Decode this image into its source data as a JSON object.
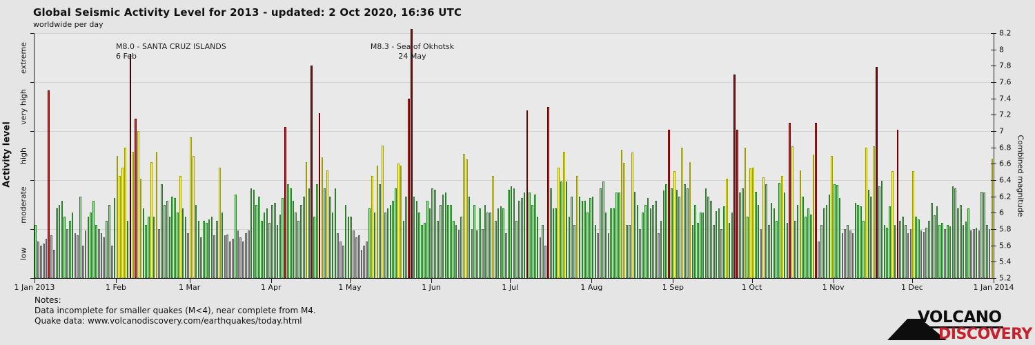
{
  "header": {
    "title": "Global Seismic Activity Level for 2013 - updated:  2 Oct 2020, 16:36 UTC",
    "subtitle": "worldwide per day"
  },
  "y_left": {
    "label": "Activity level"
  },
  "y_right": {
    "label": "Combined magnitude"
  },
  "annotations": [
    {
      "line1": "M8.0 - SANTA CRUZ ISLANDS",
      "line2": "6 Feb"
    },
    {
      "line1": "M8.3 - Sea of Okhotsk",
      "line2": "24 May"
    }
  ],
  "notes": {
    "line1": "Notes:",
    "line2": "Data incomplete for smaller quakes (M<4), near complete from M4.",
    "line3": "Quake data: www.volcanodiscovery.com/earthquakes/today.html"
  },
  "logo": {
    "line1": "VOLCANO",
    "line2": "DISCOVERY"
  },
  "chart_data": {
    "type": "bar",
    "title": "Global Seismic Activity Level for 2013",
    "subtitle": "worldwide per day, one bar per day",
    "start_date": "2013-01-01",
    "end_date": "2013-12-31",
    "ylim": [
      5.2,
      8.2
    ],
    "ylabel_left": "Activity level",
    "ylabel_right": "Combined magnitude",
    "grid": true,
    "gridlines_at": [
      5.8,
      6.4,
      7.0,
      7.6,
      8.2
    ],
    "bands": [
      {
        "label": "low",
        "min": 5.2,
        "max": 5.8,
        "fill": "#ababab",
        "edge": "#636363"
      },
      {
        "label": "moderate",
        "min": 5.8,
        "max": 6.4,
        "fill": "#96d796",
        "edge": "#2e7d2e"
      },
      {
        "label": "high",
        "min": 6.4,
        "max": 7.0,
        "fill": "#f6f632",
        "edge": "#9e9e00"
      },
      {
        "label": "very high",
        "min": 7.0,
        "max": 7.6,
        "fill": "#e01f1f",
        "edge": "#6e0000"
      },
      {
        "label": "extreme",
        "min": 7.6,
        "max": 8.3,
        "fill": "#7c1010",
        "edge": "#350404"
      }
    ],
    "right_ticks": [
      "5.2",
      "5.4",
      "5.6",
      "5.8",
      "6",
      "6.2",
      "6.4",
      "6.6",
      "6.8",
      "7",
      "7.2",
      "7.4",
      "7.6",
      "7.8",
      "8",
      "8.2"
    ],
    "x_tick_labels": [
      "1 Jan 2013",
      "1 Feb",
      "1 Mar",
      "1 Apr",
      "1 May",
      "1 Jun",
      "1 Jul",
      "1 Aug",
      "1 Sep",
      "1 Oct",
      "1 Nov",
      "1 Dec",
      "1 Jan 2014"
    ],
    "x_tick_day_offsets": [
      0,
      31,
      59,
      90,
      120,
      151,
      181,
      212,
      243,
      273,
      304,
      334,
      365
    ],
    "notable_events": [
      {
        "date": "2013-02-06",
        "label": "M8.0 - SANTA CRUZ ISLANDS"
      },
      {
        "date": "2013-05-24",
        "label": "M8.3 - Sea of Okhotsk"
      }
    ],
    "values": [
      5.85,
      5.65,
      5.6,
      5.62,
      5.68,
      7.5,
      5.72,
      5.55,
      6.05,
      6.1,
      6.15,
      5.95,
      5.8,
      5.9,
      6.0,
      5.75,
      5.72,
      6.2,
      5.6,
      5.78,
      5.95,
      6.0,
      6.15,
      5.85,
      5.8,
      5.75,
      5.7,
      5.9,
      6.1,
      5.6,
      6.18,
      6.7,
      6.45,
      6.55,
      6.8,
      5.9,
      7.95,
      6.75,
      7.15,
      7.0,
      6.42,
      6.05,
      5.85,
      5.95,
      6.62,
      5.95,
      6.75,
      5.8,
      6.35,
      6.1,
      6.15,
      5.95,
      6.2,
      6.18,
      6.0,
      6.45,
      6.05,
      5.95,
      5.75,
      6.92,
      6.7,
      6.1,
      5.9,
      5.7,
      5.9,
      5.88,
      5.92,
      5.95,
      5.72,
      5.9,
      6.55,
      6.0,
      5.72,
      5.73,
      5.65,
      5.68,
      6.22,
      5.78,
      5.7,
      5.65,
      5.75,
      5.78,
      6.3,
      6.28,
      6.1,
      6.2,
      5.9,
      6.0,
      6.05,
      5.88,
      6.1,
      6.12,
      5.85,
      5.98,
      6.18,
      7.05,
      6.35,
      6.3,
      6.15,
      6.0,
      5.9,
      6.1,
      6.2,
      6.62,
      6.3,
      7.8,
      5.95,
      6.35,
      7.22,
      6.68,
      6.3,
      6.52,
      6.2,
      6.0,
      6.3,
      5.75,
      5.65,
      5.6,
      6.1,
      5.95,
      5.95,
      5.78,
      5.7,
      5.72,
      5.55,
      5.6,
      5.65,
      6.05,
      6.45,
      6.0,
      6.58,
      6.35,
      6.82,
      6.0,
      6.05,
      6.1,
      6.15,
      6.3,
      6.6,
      6.58,
      5.9,
      6.2,
      7.4,
      8.25,
      6.2,
      6.15,
      6.0,
      5.85,
      5.88,
      6.15,
      6.05,
      6.3,
      6.28,
      5.9,
      6.1,
      6.22,
      6.25,
      6.1,
      6.1,
      5.9,
      5.85,
      5.79,
      5.95,
      6.72,
      6.65,
      6.2,
      5.8,
      6.1,
      5.78,
      6.05,
      5.8,
      6.1,
      6.0,
      6.0,
      6.45,
      5.9,
      6.05,
      6.08,
      6.05,
      5.75,
      6.28,
      6.32,
      6.3,
      5.9,
      6.15,
      6.18,
      6.25,
      7.25,
      6.25,
      6.1,
      6.22,
      5.95,
      5.7,
      5.85,
      5.6,
      7.3,
      6.3,
      6.05,
      6.05,
      6.55,
      6.38,
      6.75,
      6.38,
      5.95,
      6.2,
      5.85,
      6.45,
      6.2,
      6.15,
      6.15,
      6.0,
      6.18,
      6.2,
      5.85,
      5.75,
      6.3,
      6.38,
      6.0,
      5.75,
      6.05,
      6.05,
      6.25,
      6.25,
      6.77,
      6.61,
      5.85,
      5.85,
      6.74,
      6.26,
      6.1,
      5.8,
      6.0,
      6.1,
      6.18,
      6.05,
      6.1,
      6.15,
      5.75,
      5.9,
      6.27,
      6.35,
      7.02,
      6.3,
      6.51,
      6.28,
      6.2,
      6.8,
      6.35,
      6.3,
      6.62,
      5.85,
      6.1,
      5.88,
      6.0,
      6.0,
      6.3,
      6.2,
      6.15,
      5.85,
      6.02,
      6.05,
      5.8,
      6.08,
      6.42,
      5.88,
      6.0,
      7.69,
      7.02,
      6.25,
      6.3,
      6.8,
      5.95,
      6.54,
      6.55,
      6.26,
      6.1,
      5.8,
      6.43,
      6.35,
      5.85,
      6.12,
      6.05,
      5.9,
      6.37,
      6.45,
      6.25,
      5.88,
      7.1,
      6.81,
      5.9,
      6.1,
      6.52,
      6.2,
      5.95,
      6.05,
      5.98,
      6.71,
      7.1,
      5.65,
      5.85,
      6.05,
      6.1,
      6.22,
      6.7,
      6.35,
      6.34,
      6.18,
      5.75,
      5.8,
      5.85,
      5.78,
      5.75,
      6.12,
      6.1,
      6.08,
      5.9,
      6.8,
      6.28,
      6.2,
      6.81,
      7.79,
      6.32,
      6.39,
      5.85,
      5.82,
      6.08,
      6.51,
      5.85,
      7.02,
      5.9,
      5.95,
      5.85,
      5.75,
      5.8,
      6.51,
      5.95,
      5.92,
      5.78,
      5.77,
      5.82,
      5.9,
      6.12,
      5.97,
      6.08,
      5.85,
      5.88,
      5.8,
      5.85,
      5.83,
      6.32,
      6.3,
      6.05,
      6.1,
      5.85,
      5.89,
      6.05,
      5.78,
      5.8,
      5.82,
      5.78,
      6.26,
      6.25,
      5.85,
      5.8,
      6.66
    ]
  }
}
